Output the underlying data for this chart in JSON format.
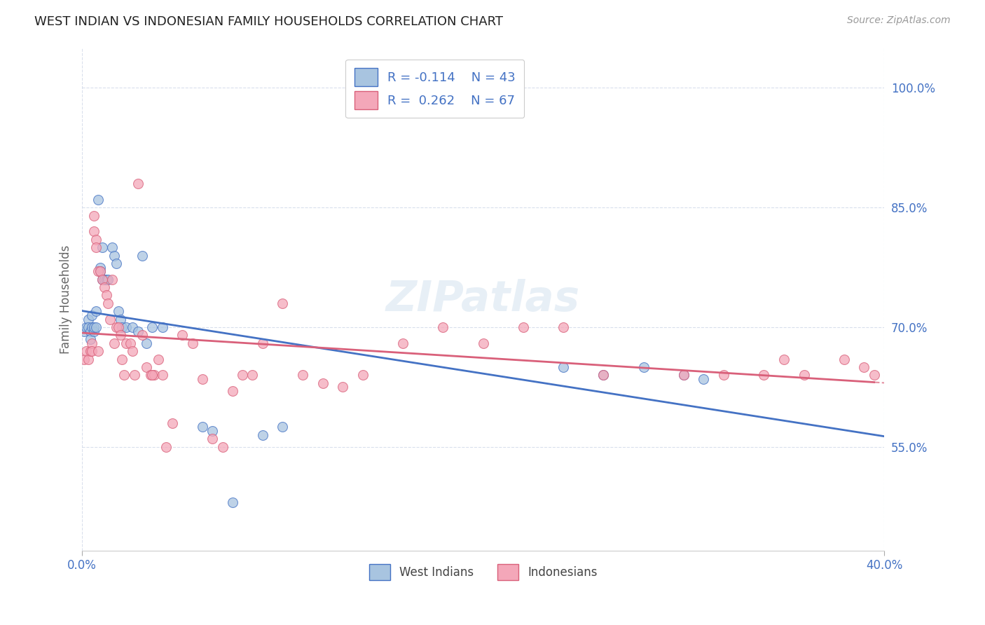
{
  "title": "WEST INDIAN VS INDONESIAN FAMILY HOUSEHOLDS CORRELATION CHART",
  "source": "Source: ZipAtlas.com",
  "ylabel": "Family Households",
  "y_ticks": [
    "55.0%",
    "70.0%",
    "85.0%",
    "100.0%"
  ],
  "y_tick_vals": [
    0.55,
    0.7,
    0.85,
    1.0
  ],
  "x_range": [
    0.0,
    0.4
  ],
  "y_range": [
    0.42,
    1.05
  ],
  "west_indian_color": "#a8c4e0",
  "indonesian_color": "#f4a7b9",
  "west_indian_line_color": "#4472c4",
  "indonesian_line_color": "#d9607a",
  "background_color": "#ffffff",
  "watermark": "ZIPatlas",
  "west_indian_x": [
    0.001,
    0.002,
    0.003,
    0.003,
    0.004,
    0.004,
    0.005,
    0.005,
    0.006,
    0.006,
    0.007,
    0.007,
    0.008,
    0.009,
    0.009,
    0.01,
    0.01,
    0.011,
    0.012,
    0.013,
    0.015,
    0.016,
    0.017,
    0.018,
    0.019,
    0.02,
    0.022,
    0.025,
    0.028,
    0.03,
    0.032,
    0.035,
    0.04,
    0.06,
    0.065,
    0.075,
    0.09,
    0.1,
    0.24,
    0.26,
    0.28,
    0.3,
    0.31
  ],
  "west_indian_y": [
    0.695,
    0.7,
    0.71,
    0.7,
    0.695,
    0.685,
    0.715,
    0.7,
    0.695,
    0.7,
    0.72,
    0.7,
    0.86,
    0.775,
    0.77,
    0.76,
    0.8,
    0.76,
    0.76,
    0.76,
    0.8,
    0.79,
    0.78,
    0.72,
    0.71,
    0.7,
    0.7,
    0.7,
    0.695,
    0.79,
    0.68,
    0.7,
    0.7,
    0.575,
    0.57,
    0.48,
    0.565,
    0.575,
    0.65,
    0.64,
    0.65,
    0.64,
    0.635
  ],
  "indonesian_x": [
    0.001,
    0.002,
    0.003,
    0.004,
    0.005,
    0.005,
    0.006,
    0.006,
    0.007,
    0.007,
    0.008,
    0.008,
    0.009,
    0.01,
    0.011,
    0.012,
    0.013,
    0.014,
    0.015,
    0.016,
    0.017,
    0.018,
    0.019,
    0.02,
    0.021,
    0.022,
    0.024,
    0.025,
    0.026,
    0.028,
    0.03,
    0.032,
    0.034,
    0.036,
    0.038,
    0.04,
    0.042,
    0.05,
    0.055,
    0.06,
    0.065,
    0.07,
    0.08,
    0.09,
    0.1,
    0.11,
    0.12,
    0.13,
    0.14,
    0.16,
    0.18,
    0.2,
    0.22,
    0.24,
    0.26,
    0.3,
    0.32,
    0.34,
    0.35,
    0.36,
    0.38,
    0.39,
    0.395,
    0.035,
    0.045,
    0.075,
    0.085
  ],
  "indonesian_y": [
    0.66,
    0.67,
    0.66,
    0.67,
    0.68,
    0.67,
    0.84,
    0.82,
    0.81,
    0.8,
    0.67,
    0.77,
    0.77,
    0.76,
    0.75,
    0.74,
    0.73,
    0.71,
    0.76,
    0.68,
    0.7,
    0.7,
    0.69,
    0.66,
    0.64,
    0.68,
    0.68,
    0.67,
    0.64,
    0.88,
    0.69,
    0.65,
    0.64,
    0.64,
    0.66,
    0.64,
    0.55,
    0.69,
    0.68,
    0.635,
    0.56,
    0.55,
    0.64,
    0.68,
    0.73,
    0.64,
    0.63,
    0.625,
    0.64,
    0.68,
    0.7,
    0.68,
    0.7,
    0.7,
    0.64,
    0.64,
    0.64,
    0.64,
    0.66,
    0.64,
    0.66,
    0.65,
    0.64,
    0.64,
    0.58,
    0.62,
    0.64
  ]
}
